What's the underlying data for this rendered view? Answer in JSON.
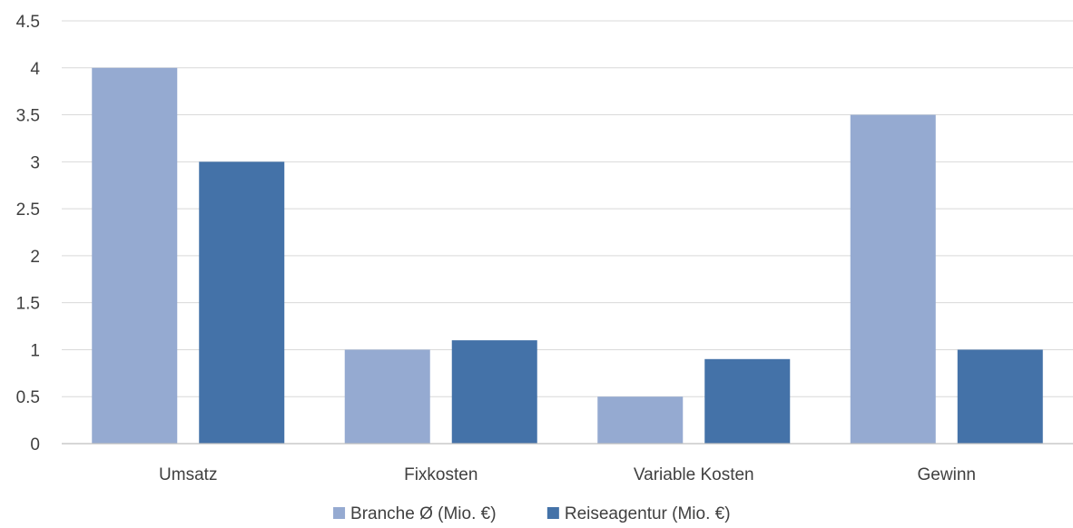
{
  "chart_data": {
    "type": "bar",
    "categories": [
      "Umsatz",
      "Fixkosten",
      "Variable Kosten",
      "Gewinn"
    ],
    "series": [
      {
        "name": "Branche Ø (Mio. €)",
        "values": [
          4,
          1,
          0.5,
          3.5
        ],
        "color": "#95aad1"
      },
      {
        "name": "Reiseagentur (Mio. €)",
        "values": [
          3,
          1.1,
          0.9,
          1
        ],
        "color": "#4472a8"
      }
    ],
    "ylim": [
      0,
      4.5
    ],
    "yticks": [
      "0",
      "0.5",
      "1",
      "1.5",
      "2",
      "2.5",
      "3",
      "3.5",
      "4",
      "4.5"
    ],
    "grid": true,
    "legend_position": "bottom"
  }
}
